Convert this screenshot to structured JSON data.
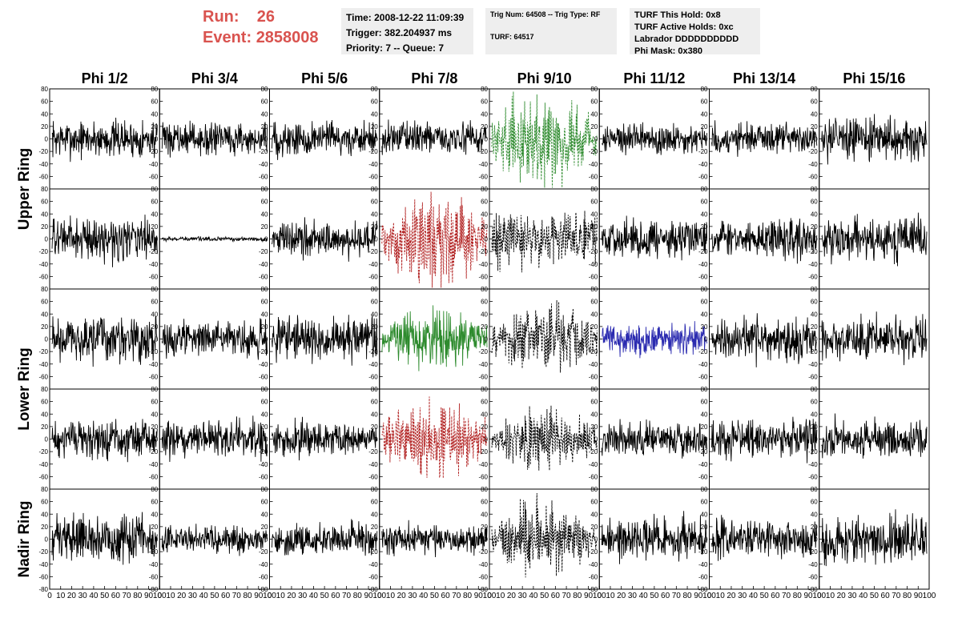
{
  "run_info": {
    "run_label": "Run:",
    "run_value": "26",
    "event_label": "Event:",
    "event_value": "2858008"
  },
  "info_box_1": {
    "time": "Time: 2008-12-22 11:09:39",
    "trigger": "Trigger: 382.204937 ms",
    "priority": "Priority: 7 -- Queue: 7"
  },
  "info_box_2": {
    "trig": "Trig Num: 64508 -- Trig Type: RF",
    "turf": "TURF: 64517"
  },
  "info_box_3": {
    "this_hold": "TURF This Hold: 0x8",
    "active_holds": "TURF Active Holds: 0xc",
    "labrador": "Labrador DDDDDDDDDD",
    "phi_mask": "Phi Mask: 0x380"
  },
  "chart_data": {
    "type": "line",
    "columns": [
      "Phi 1/2",
      "Phi 3/4",
      "Phi 5/6",
      "Phi 7/8",
      "Phi 9/10",
      "Phi 11/12",
      "Phi 13/14",
      "Phi 15/16"
    ],
    "row_groups": [
      "Upper Ring",
      "Lower Ring",
      "Nadir Ring"
    ],
    "xlim": [
      0,
      100
    ],
    "x_ticks": [
      0,
      10,
      20,
      30,
      40,
      50,
      60,
      70,
      80,
      90,
      100
    ],
    "ylim": [
      -80,
      80
    ],
    "y_ticks": [
      -60,
      -40,
      -20,
      0,
      20,
      40,
      60,
      80
    ],
    "y_ticks_bottom_row": [
      -80,
      -60,
      -40,
      -20,
      0,
      20,
      40,
      60,
      80
    ],
    "panels": [
      [
        {
          "color": "#000000",
          "style": "solid",
          "amplitude": 18
        },
        {
          "color": "#000000",
          "style": "solid",
          "amplitude": 15
        },
        {
          "color": "#000000",
          "style": "solid",
          "amplitude": 17
        },
        {
          "color": "#000000",
          "style": "solid",
          "amplitude": 15
        },
        {
          "color": "#2e8b2e",
          "style": "dashed",
          "amplitude": 45
        },
        {
          "color": "#000000",
          "style": "solid",
          "amplitude": 15
        },
        {
          "color": "#000000",
          "style": "solid",
          "amplitude": 15
        },
        {
          "color": "#000000",
          "style": "solid",
          "amplitude": 20
        }
      ],
      [
        {
          "color": "#000000",
          "style": "solid",
          "amplitude": 20
        },
        {
          "color": "#000000",
          "style": "solid",
          "amplitude": 2
        },
        {
          "color": "#000000",
          "style": "solid",
          "amplitude": 17
        },
        {
          "color": "#b22222",
          "style": "dashed",
          "amplitude": 45
        },
        {
          "color": "#000000",
          "style": "dashed",
          "amplitude": 25
        },
        {
          "color": "#000000",
          "style": "solid",
          "amplitude": 18
        },
        {
          "color": "#000000",
          "style": "solid",
          "amplitude": 18
        },
        {
          "color": "#000000",
          "style": "solid",
          "amplitude": 20
        }
      ],
      [
        {
          "color": "#000000",
          "style": "solid",
          "amplitude": 22
        },
        {
          "color": "#000000",
          "style": "solid",
          "amplitude": 16
        },
        {
          "color": "#000000",
          "style": "solid",
          "amplitude": 20
        },
        {
          "color": "#2e8b2e",
          "style": "solid",
          "amplitude": 30
        },
        {
          "color": "#000000",
          "style": "dashed",
          "amplitude": 35
        },
        {
          "color": "#2b2bb0",
          "style": "solid",
          "amplitude": 15
        },
        {
          "color": "#000000",
          "style": "solid",
          "amplitude": 20
        },
        {
          "color": "#000000",
          "style": "solid",
          "amplitude": 20
        }
      ],
      [
        {
          "color": "#000000",
          "style": "solid",
          "amplitude": 18
        },
        {
          "color": "#000000",
          "style": "solid",
          "amplitude": 18
        },
        {
          "color": "#000000",
          "style": "solid",
          "amplitude": 16
        },
        {
          "color": "#b22222",
          "style": "dashed",
          "amplitude": 40
        },
        {
          "color": "#000000",
          "style": "dashed",
          "amplitude": 30
        },
        {
          "color": "#000000",
          "style": "solid",
          "amplitude": 16
        },
        {
          "color": "#000000",
          "style": "solid",
          "amplitude": 18
        },
        {
          "color": "#000000",
          "style": "solid",
          "amplitude": 18
        }
      ],
      [
        {
          "color": "#000000",
          "style": "solid",
          "amplitude": 22
        },
        {
          "color": "#000000",
          "style": "solid",
          "amplitude": 13
        },
        {
          "color": "#000000",
          "style": "solid",
          "amplitude": 15
        },
        {
          "color": "#000000",
          "style": "solid",
          "amplitude": 15
        },
        {
          "color": "#000000",
          "style": "dashed",
          "amplitude": 35
        },
        {
          "color": "#000000",
          "style": "solid",
          "amplitude": 20
        },
        {
          "color": "#000000",
          "style": "solid",
          "amplitude": 18
        },
        {
          "color": "#000000",
          "style": "solid",
          "amplitude": 22
        }
      ]
    ]
  }
}
